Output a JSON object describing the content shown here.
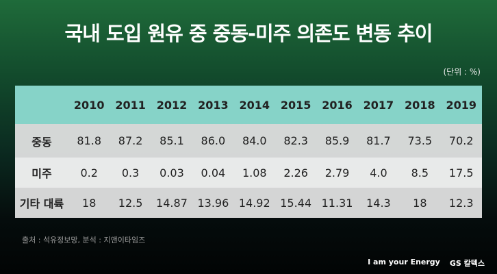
{
  "title": "국내 도입 원유 중 중동-미주 의존도 변동 추이",
  "unit": "(단위 : %)",
  "table": {
    "columns": [
      "2010",
      "2011",
      "2012",
      "2013",
      "2014",
      "2015",
      "2016",
      "2017",
      "2018",
      "2019"
    ],
    "rows": [
      {
        "label": "중동",
        "cells": [
          "81.8",
          "87.2",
          "85.1",
          "86.0",
          "84.0",
          "82.3",
          "85.9",
          "81.7",
          "73.5",
          "70.2"
        ]
      },
      {
        "label": "미주",
        "cells": [
          "0.2",
          "0.3",
          "0.03",
          "0.04",
          "1.08",
          "2.26",
          "2.79",
          "4.0",
          "8.5",
          "17.5"
        ]
      },
      {
        "label": "기타 대륙",
        "cells": [
          "18",
          "12.5",
          "14.87",
          "13.96",
          "14.92",
          "15.44",
          "11.31",
          "14.3",
          "18",
          "12.3"
        ]
      }
    ]
  },
  "source": "출처 : 석유정보망, 분석 : 지앤이타임즈",
  "footer": {
    "slogan": "I am your Energy",
    "brand": "GS 칼텍스"
  }
}
